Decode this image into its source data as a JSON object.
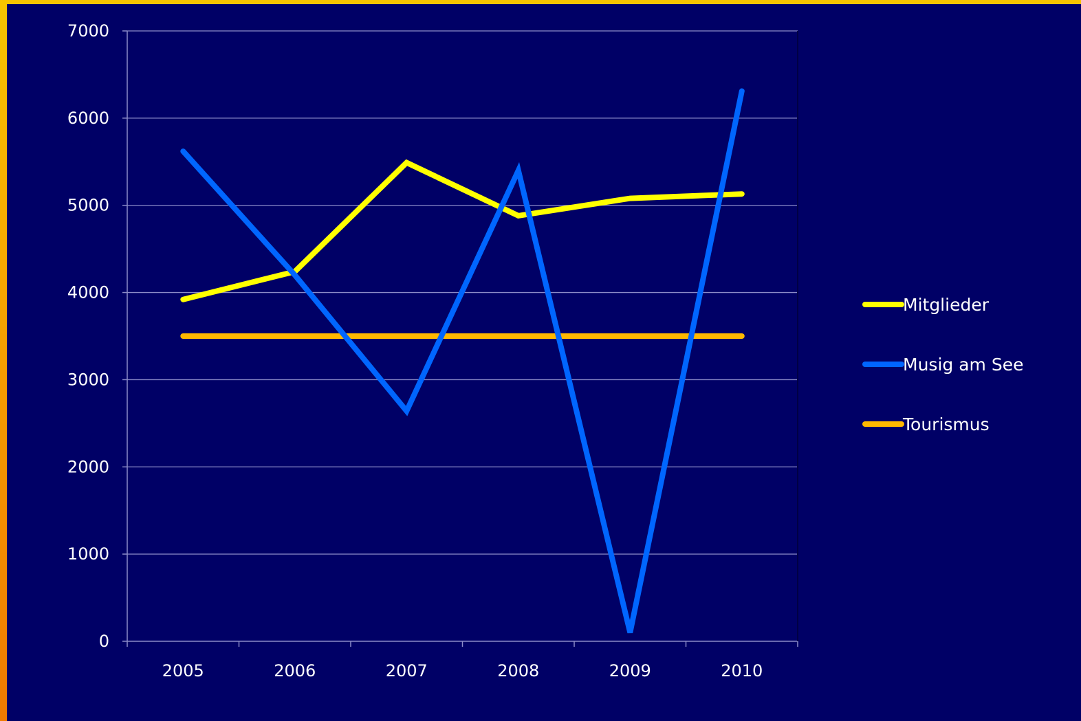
{
  "chart_data": {
    "type": "line",
    "categories": [
      "2005",
      "2006",
      "2007",
      "2008",
      "2009",
      "2010"
    ],
    "ylim": [
      0,
      7000
    ],
    "yticks": [
      0,
      1000,
      2000,
      3000,
      4000,
      5000,
      6000,
      7000
    ],
    "grid": true,
    "legend_position": "right",
    "series": [
      {
        "name": "Mitglieder",
        "color": "#ffff00",
        "values": [
          3920,
          4240,
          5490,
          4880,
          5080,
          5130
        ]
      },
      {
        "name": "Musig am See",
        "color": "#0066ff",
        "values": [
          5620,
          4200,
          2640,
          5400,
          100,
          6310
        ]
      },
      {
        "name": "Tourismus",
        "color": "#ffb800",
        "values": [
          3500,
          3500,
          3500,
          3500,
          3500,
          3500
        ]
      }
    ]
  },
  "colors": {
    "background": "#000066",
    "frame_gradient_top": "#f7c400",
    "frame_gradient_bottom": "#f07a00",
    "grid": "#8c8cc8",
    "axis": "#8c8cc8"
  }
}
